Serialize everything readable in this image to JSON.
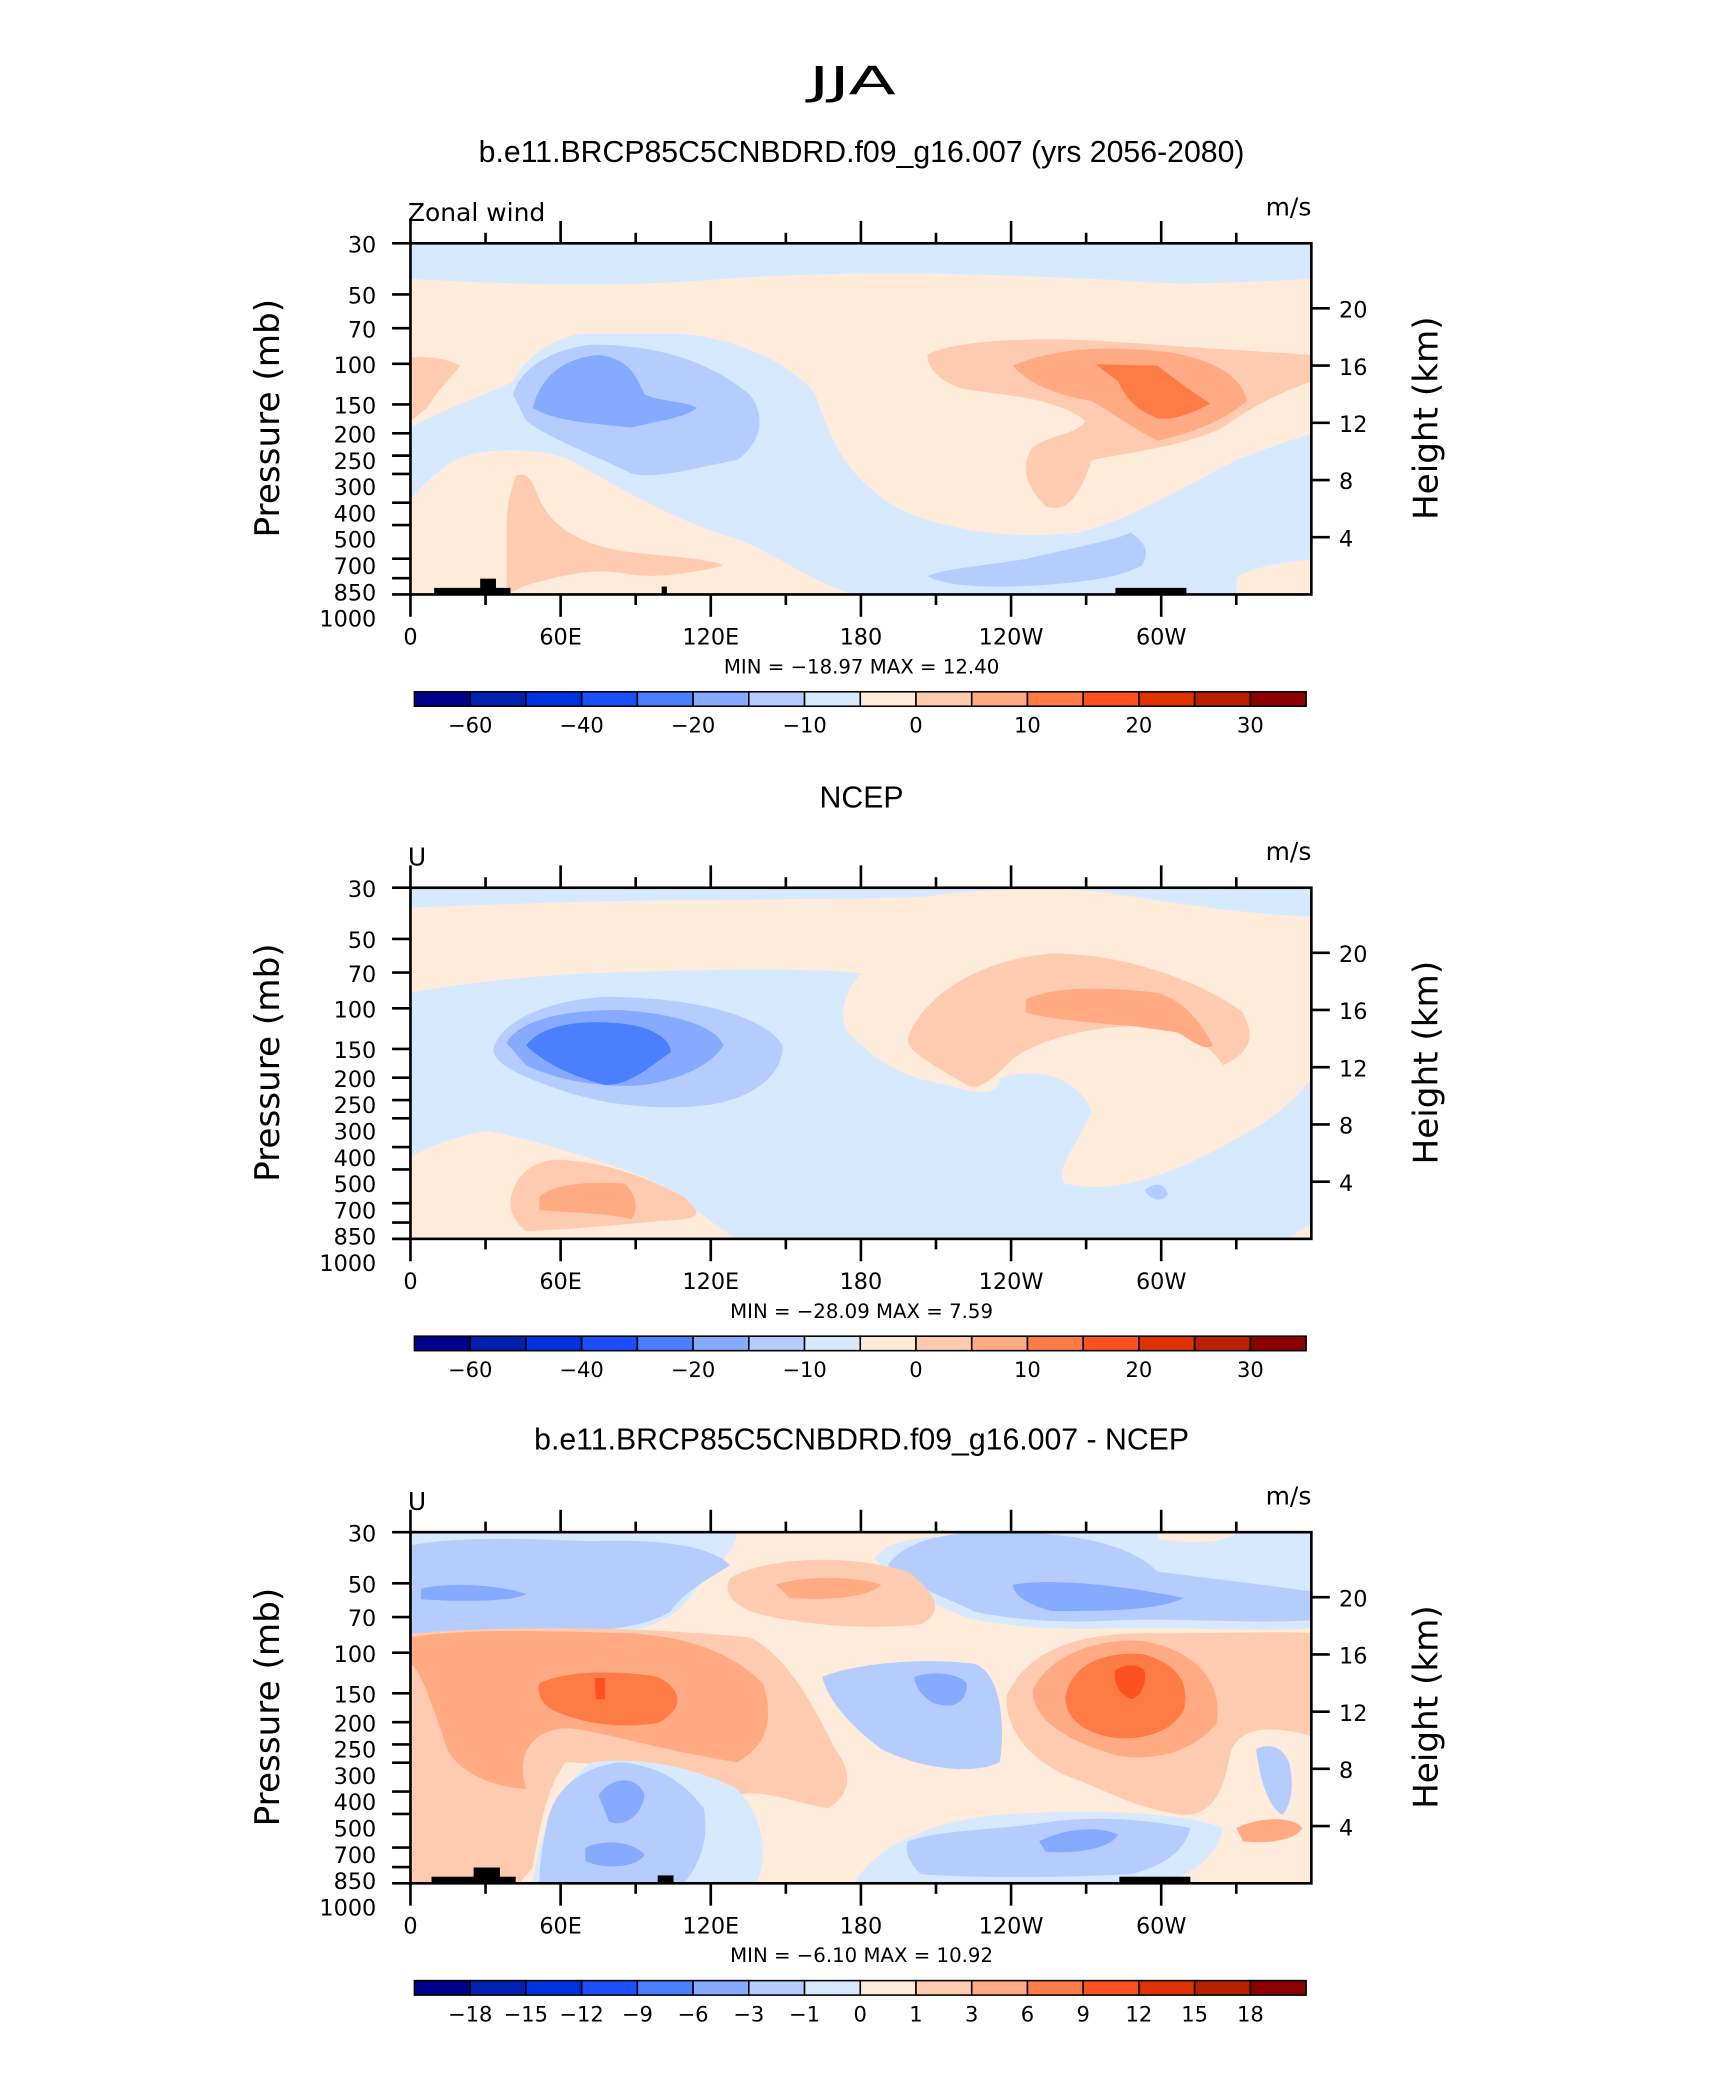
{
  "figure_title": "JJA",
  "chart_data": [
    {
      "type": "contour",
      "title": "b.e11.BRCP85C5CNBDRD.f09_g16.007 (yrs 2056-2080)",
      "left_string": "Zonal wind",
      "right_string": "m/s",
      "ylabel": "Pressure  (mb)",
      "y2label": "Height  (km)",
      "x_tick_labels": [
        "0",
        "60E",
        "120E",
        "180",
        "120W",
        "60W"
      ],
      "x_ticks_deg": [
        0,
        60,
        120,
        180,
        240,
        300
      ],
      "xlim": [
        0,
        360
      ],
      "y_ticks": [
        30,
        50,
        70,
        100,
        150,
        200,
        250,
        300,
        400,
        500,
        700,
        850,
        1000
      ],
      "ylim": [
        1000,
        30
      ],
      "y_scale": "log",
      "y2_ticks": [
        4,
        8,
        12,
        16,
        20
      ],
      "min_max_text": "MIN =  −18.97   MAX =   12.40",
      "min": -18.97,
      "max": 12.4,
      "colorbar_labels": [
        "−60",
        "−40",
        "−20",
        "−10",
        "0",
        "10",
        "20",
        "30"
      ],
      "colorbar_label_boundaries": [
        1,
        3,
        5,
        7,
        9,
        11,
        13,
        15
      ]
    },
    {
      "type": "contour",
      "title": "NCEP",
      "left_string": "U",
      "right_string": "m/s",
      "ylabel": "Pressure  (mb)",
      "y2label": "Height  (km)",
      "x_tick_labels": [
        "0",
        "60E",
        "120E",
        "180",
        "120W",
        "60W"
      ],
      "x_ticks_deg": [
        0,
        60,
        120,
        180,
        240,
        300
      ],
      "xlim": [
        0,
        360
      ],
      "y_ticks": [
        30,
        50,
        70,
        100,
        150,
        200,
        250,
        300,
        400,
        500,
        700,
        850,
        1000
      ],
      "ylim": [
        1000,
        30
      ],
      "y_scale": "log",
      "y2_ticks": [
        4,
        8,
        12,
        16,
        20
      ],
      "min_max_text": "MIN =  −28.09   MAX =    7.59",
      "min": -28.09,
      "max": 7.59,
      "colorbar_labels": [
        "−60",
        "−40",
        "−20",
        "−10",
        "0",
        "10",
        "20",
        "30"
      ],
      "colorbar_label_boundaries": [
        1,
        3,
        5,
        7,
        9,
        11,
        13,
        15
      ]
    },
    {
      "type": "contour",
      "title": "b.e11.BRCP85C5CNBDRD.f09_g16.007 - NCEP",
      "left_string": "U",
      "right_string": "m/s",
      "ylabel": "Pressure  (mb)",
      "y2label": "Height  (km)",
      "x_tick_labels": [
        "0",
        "60E",
        "120E",
        "180",
        "120W",
        "60W"
      ],
      "x_ticks_deg": [
        0,
        60,
        120,
        180,
        240,
        300
      ],
      "xlim": [
        0,
        360
      ],
      "y_ticks": [
        30,
        50,
        70,
        100,
        150,
        200,
        250,
        300,
        400,
        500,
        700,
        850,
        1000
      ],
      "ylim": [
        1000,
        30
      ],
      "y_scale": "log",
      "y2_ticks": [
        4,
        8,
        12,
        16,
        20
      ],
      "min_max_text": "MIN =   −6.10   MAX =   10.92",
      "min": -6.1,
      "max": 10.92,
      "colorbar_labels": [
        "−18",
        "−15",
        "−12",
        "−9",
        "−6",
        "−3",
        "−1",
        "0",
        "1",
        "3",
        "6",
        "9",
        "12",
        "15",
        "18"
      ],
      "colorbar_label_boundaries": [
        1,
        2,
        3,
        4,
        5,
        6,
        7,
        8,
        9,
        10,
        11,
        12,
        13,
        14,
        15
      ]
    }
  ],
  "colorbar_colors": [
    "#00008b",
    "#0021b0",
    "#0033e0",
    "#1a4fff",
    "#4a7fff",
    "#85aaff",
    "#b5ccff",
    "#d7e9ff",
    "#ffebd9",
    "#ffcbb0",
    "#ffaa82",
    "#ff7b45",
    "#ff5020",
    "#e03200",
    "#b82000",
    "#8b0000"
  ],
  "topography_color": "#000000"
}
